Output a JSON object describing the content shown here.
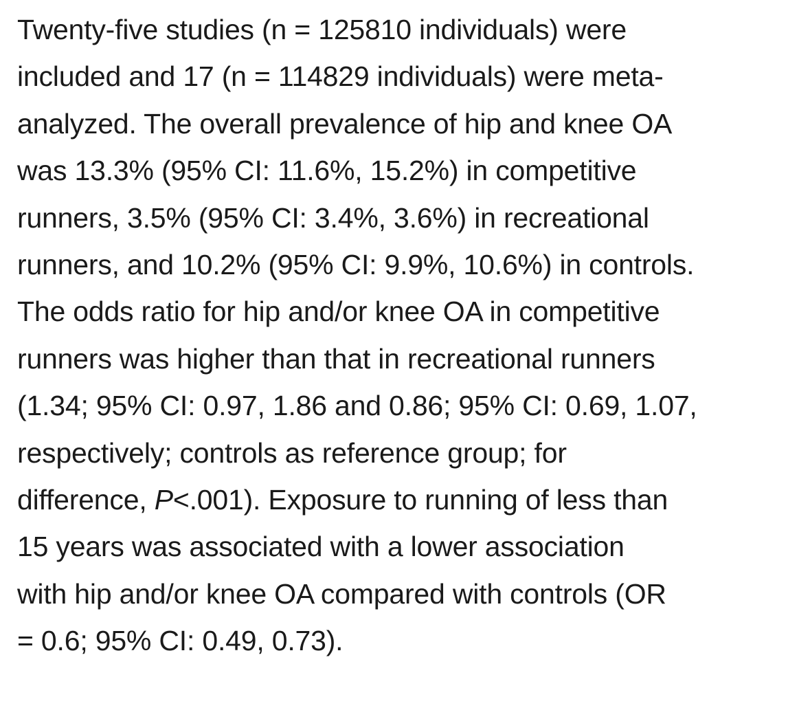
{
  "paragraph": {
    "lines": [
      "Twenty-five studies (n = 125810 individuals) were",
      "included and 17 (n = 114829 individuals) were meta-",
      "analyzed. The overall prevalence of hip and knee OA",
      "was 13.3% (95% CI: 11.6%, 15.2%) in competitive",
      "runners, 3.5% (95% CI: 3.4%, 3.6%) in recreational",
      "runners, and 10.2% (95% CI: 9.9%, 10.6%) in controls.",
      "The odds ratio for hip and/or knee OA in competitive",
      "runners was higher than that in recreational runners",
      "(1.34; 95% CI: 0.97, 1.86 and 0.86; 95% CI: 0.69, 1.07,",
      "respectively; controls as reference group; for",
      {
        "before": "difference, ",
        "italic": "P",
        "after": "<.001). Exposure to running of less than"
      },
      "15 years was associated with a lower association",
      "with hip and/or knee OA compared with controls (OR",
      "= 0.6; 95% CI: 0.49, 0.73)."
    ]
  }
}
